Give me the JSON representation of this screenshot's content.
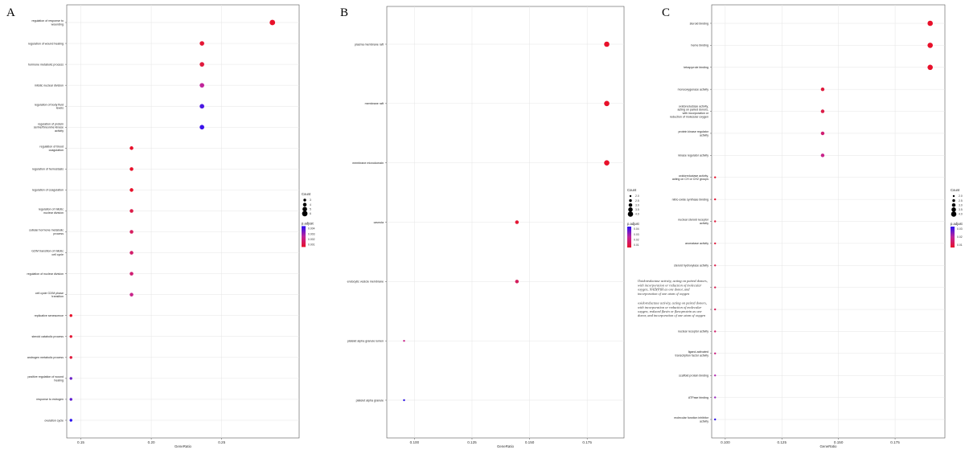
{
  "figure": {
    "panels": [
      {
        "letter": "A",
        "chart_data": {
          "type": "scatter",
          "title": "",
          "xlabel": "GeneRatio",
          "ylabel": "",
          "xlim": [
            0.14,
            0.305
          ],
          "xticks": [
            0.15,
            0.2,
            0.25
          ],
          "xtick_labels": [
            "0.15",
            "0.20",
            "0.25"
          ],
          "grid": true,
          "legend_placement": "right",
          "categories": [
            "regulation of response to wounding",
            "regulation of wound healing",
            "hormone metabolic process",
            "mitotic nuclear division",
            "regulation of body fluid levels",
            "regulation of protein serine/threonine kinase activity",
            "regulation of blood coagulation",
            "regulation of hemostasis",
            "regulation of coagulation",
            "regulation of mitotic nuclear division",
            "cellular hormone metabolic process",
            "G2/M transition of mitotic cell cycle",
            "regulation of nuclear division",
            "cell cycle G2/M phase transition",
            "replicative senescence",
            "steroid catabolic process",
            "androgen metabolic process",
            "positive regulation of wound healing",
            "response to estrogen",
            "ovulation cycle"
          ],
          "category_lines": [
            [
              "regulation of response to",
              "wounding"
            ],
            [
              "regulation of wound healing"
            ],
            [
              "hormone metabolic process"
            ],
            [
              "mitotic nuclear division"
            ],
            [
              "regulation of body fluid",
              "levels"
            ],
            [
              "regulation of protein",
              "serine/threonine kinase",
              "activity"
            ],
            [
              "regulation of blood",
              "coagulation"
            ],
            [
              "regulation of hemostasis"
            ],
            [
              "regulation of coagulation"
            ],
            [
              "regulation of mitotic",
              "nuclear division"
            ],
            [
              "cellular hormone metabolic",
              "process"
            ],
            [
              "G2/M transition of mitotic",
              "cell cycle"
            ],
            [
              "regulation of nuclear division"
            ],
            [
              "cell cycle G2/M phase",
              "transition"
            ],
            [
              "replicative senescence"
            ],
            [
              "steroid catabolic process"
            ],
            [
              "androgen metabolic process"
            ],
            [
              "positive regulation of wound",
              "healing"
            ],
            [
              "response to estrogen"
            ],
            [
              "ovulation cycle"
            ]
          ],
          "x": [
            0.286,
            0.236,
            0.236,
            0.236,
            0.236,
            0.236,
            0.186,
            0.186,
            0.186,
            0.186,
            0.186,
            0.186,
            0.186,
            0.186,
            0.143,
            0.143,
            0.143,
            0.143,
            0.143,
            0.143
          ],
          "count": [
            6,
            5,
            5,
            5,
            5,
            5,
            4,
            4,
            4,
            4,
            4,
            4,
            4,
            4,
            3,
            3,
            3,
            3,
            3,
            3
          ],
          "color": [
            "#e8102a",
            "#e41634",
            "#e01a3c",
            "#c0249a",
            "#4a18e2",
            "#3a12ea",
            "#e8102a",
            "#e8102a",
            "#e8102a",
            "#dc1c48",
            "#d61e60",
            "#d21e6a",
            "#d01e72",
            "#c8248a",
            "#e8102a",
            "#e41634",
            "#e01a3c",
            "#6a20c8",
            "#5c1ad0",
            "#2a10f0"
          ],
          "legend_count_title": "Count",
          "legend_count_labels": [
            "3",
            "4",
            "5",
            "6"
          ],
          "legend_count_values": [
            3,
            4,
            5,
            6
          ],
          "legend_color_title": "p.adjust",
          "legend_color_labels": [
            "0.004",
            "0.003",
            "0.002",
            "0.001"
          ]
        }
      },
      {
        "letter": "B",
        "chart_data": {
          "type": "scatter",
          "title": "",
          "xlabel": "GeneRatio",
          "ylabel": "",
          "xlim": [
            0.088,
            0.191
          ],
          "xticks": [
            0.1,
            0.125,
            0.15,
            0.175
          ],
          "xtick_labels": [
            "0.100",
            "0.125",
            "0.150",
            "0.175"
          ],
          "grid": true,
          "legend_placement": "right",
          "categories": [
            "plasma membrane raft",
            "membrane raft",
            "membrane microdomain",
            "caveola",
            "endocytic vesicle membrane",
            "platelet alpha granule lumen",
            "platelet alpha granule"
          ],
          "category_lines": [
            [
              "plasma membrane raft"
            ],
            [
              "membrane raft"
            ],
            [
              "membrane microdomain"
            ],
            [
              "caveola"
            ],
            [
              "endocytic vesicle membrane"
            ],
            [
              "platelet alpha granule lumen"
            ],
            [
              "platelet alpha granule"
            ]
          ],
          "x": [
            0.1835,
            0.1835,
            0.1835,
            0.1445,
            0.1445,
            0.0955,
            0.0955
          ],
          "count": [
            4.0,
            4.0,
            4.0,
            3.0,
            3.0,
            2.0,
            2.0
          ],
          "color": [
            "#e8102a",
            "#e8102a",
            "#e8102a",
            "#e41634",
            "#d41e5c",
            "#c8248a",
            "#2a10e6"
          ],
          "legend_count_title": "Count",
          "legend_count_labels": [
            "2.0",
            "2.5",
            "3.0",
            "3.5",
            "4.0"
          ],
          "legend_count_values": [
            2.0,
            2.5,
            3.0,
            3.5,
            4.0
          ],
          "legend_color_title": "p.adjust",
          "legend_color_labels": [
            "0.04",
            "0.03",
            "0.02",
            "0.01"
          ]
        }
      },
      {
        "letter": "C",
        "chart_data": {
          "type": "scatter",
          "title": "",
          "xlabel": "GeneRatio",
          "ylabel": "",
          "xlim": [
            0.094,
            0.197
          ],
          "xticks": [
            0.1,
            0.125,
            0.15,
            0.175
          ],
          "xtick_labels": [
            "0.100",
            "0.125",
            "0.150",
            "0.175"
          ],
          "grid": true,
          "legend_placement": "right",
          "categories": [
            "steroid binding",
            "heme binding",
            "tetrapyrrole binding",
            "monooxygenase activity",
            "oxidoreductase activity, acting on paired donors, with incorporation or reduction of molecular oxygen",
            "protein kinase regulator activity",
            "kinase regulator activity",
            "oxidoreductase activity, acting on CH or CH2 groups",
            "nitric-oxide synthase binding",
            "nuclear steroid receptor activity",
            "aromatase activity",
            "steroid hydroxylase activity",
            "Oxidoreductase activity, acting on paired donors, with incorporation or reduction of molecular oxygen, NAD(P)H as one donor, and incorporation of one atom of oxygen",
            "oxidoreductase activity, acting on paired donors, with incorporation or reduction of molecular oxygen, reduced flavin or flavoprotein as one donor, and incorporation of one atom of oxygen",
            "nuclear receptor activity",
            "ligand-activated transcription factor activity",
            "scaffold protein binding",
            "ATPase binding",
            "molecular function inhibitor activity"
          ],
          "category_lines": [
            [
              "steroid binding"
            ],
            [
              "heme binding"
            ],
            [
              "tetrapyrrole binding"
            ],
            [
              "monooxygenase activity"
            ],
            [
              "oxidoreductase activity,",
              "acting on paired donors,",
              "with incorporation or",
              "reduction of molecular oxygen"
            ],
            [
              "protein kinase regulator",
              "activity"
            ],
            [
              "kinase regulator activity"
            ],
            [
              "oxidoreductase activity,",
              "acting on CH or CH2 groups"
            ],
            [
              "nitric-oxide synthase binding"
            ],
            [
              "nuclear steroid receptor",
              "activity"
            ],
            [
              "aromatase activity"
            ],
            [
              "steroid hydroxylase activity"
            ],
            [
              "Oxidoreductase activity, acting on paired donors,",
              "with  incorporation or reduction of molecular",
              "oxygen, NAD(P)H as one donor, and",
              "incorporation of one atom of oxygen"
            ],
            [
              "oxidoreductase activity, acting on paired donors,",
              "with  incorporation or reduction of molecular",
              "oxygen, reduced flavin or flavoprotein as one",
              "donor, and incorporation of one atom of oxygen"
            ],
            [
              "nuclear receptor activity"
            ],
            [
              "ligand-activated",
              "transcription factor activity"
            ],
            [
              "scaffold protein binding"
            ],
            [
              "ATPase binding"
            ],
            [
              "molecular function inhibitor",
              "activity"
            ]
          ],
          "category_style": [
            "sans",
            "sans",
            "sans",
            "sans",
            "sans",
            "sans",
            "sans",
            "sans",
            "sans",
            "sans",
            "sans",
            "sans",
            "serif",
            "serif",
            "sans",
            "sans",
            "sans",
            "sans",
            "sans"
          ],
          "x": [
            0.1905,
            0.1905,
            0.1905,
            0.143,
            0.143,
            0.143,
            0.143,
            0.0955,
            0.0955,
            0.0955,
            0.0955,
            0.0955,
            0.0955,
            0.0955,
            0.0955,
            0.0955,
            0.0955,
            0.0955,
            0.0955
          ],
          "count": [
            4.0,
            4.0,
            4.0,
            3.0,
            3.0,
            3.0,
            3.0,
            2.0,
            2.0,
            2.0,
            2.0,
            2.0,
            2.0,
            2.0,
            2.0,
            2.0,
            2.0,
            2.0,
            2.0
          ],
          "color": [
            "#e8102a",
            "#e8102a",
            "#e8102a",
            "#e01a3c",
            "#dc1c48",
            "#d01e72",
            "#c8248a",
            "#e8102a",
            "#e41634",
            "#e01a3c",
            "#e01a3c",
            "#dc1c48",
            "#d81e52",
            "#d41e5c",
            "#d21e6a",
            "#cc2080",
            "#b42ab0",
            "#9a28c0",
            "#2a10e6"
          ],
          "legend_count_title": "Count",
          "legend_count_labels": [
            "2.0",
            "2.5",
            "3.0",
            "3.5",
            "4.0"
          ],
          "legend_count_values": [
            2.0,
            2.5,
            3.0,
            3.5,
            4.0
          ],
          "legend_color_title": "p.adjust",
          "legend_color_labels": [
            "0.03",
            "0.02",
            "0.01"
          ]
        }
      }
    ]
  }
}
